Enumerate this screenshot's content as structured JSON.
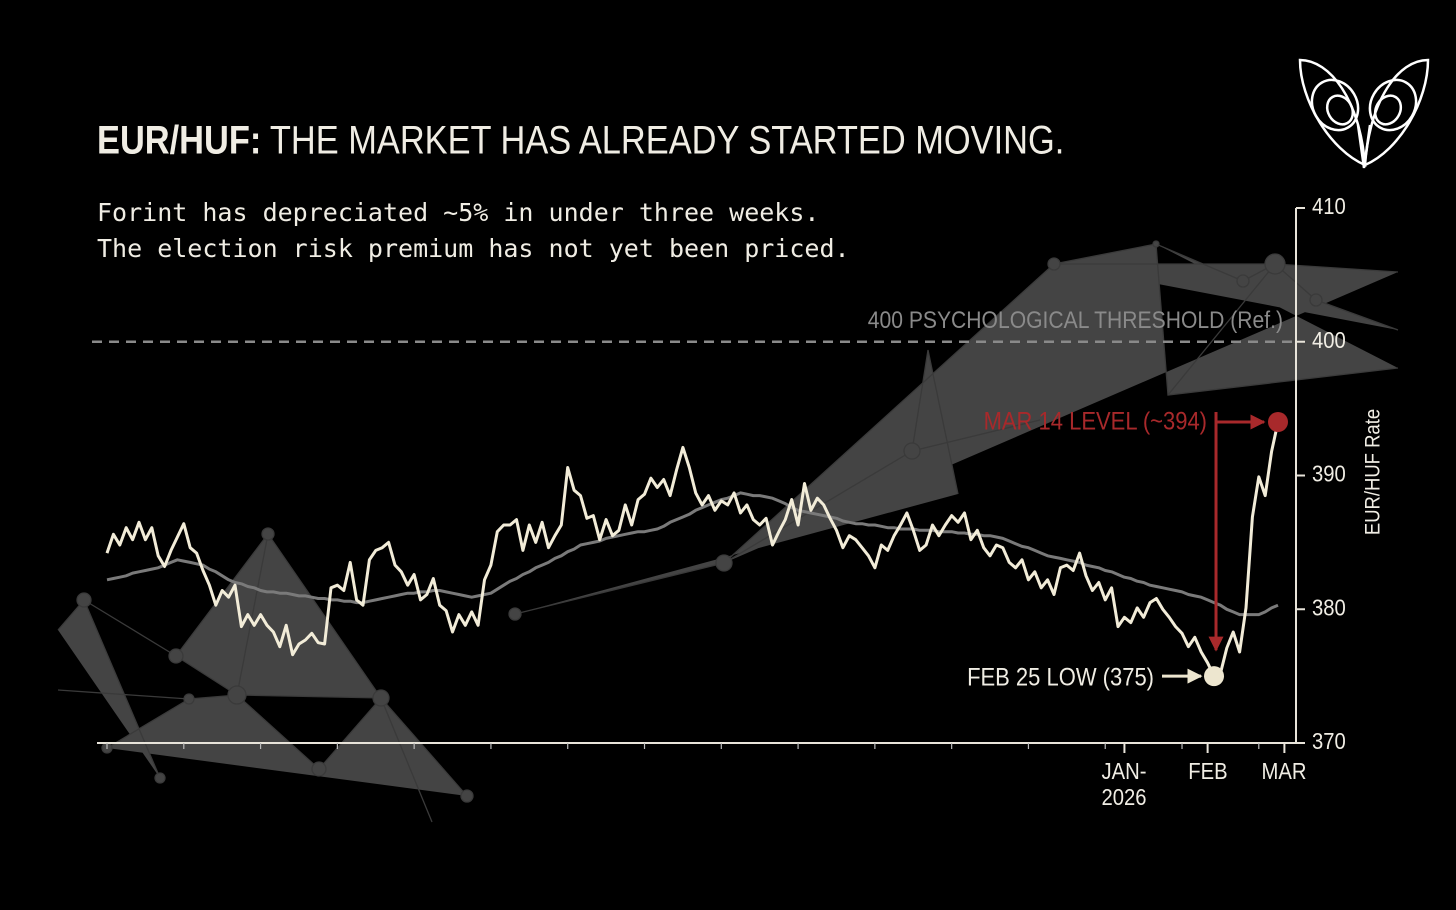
{
  "chart_data": {
    "type": "line",
    "title_lead": "EUR/HUF:",
    "title": "THE MARKET HAS ALREADY STARTED MOVING.",
    "subtitle": [
      "Forint has depreciated ~5% in under three weeks.",
      "The election risk premium has not yet been priced."
    ],
    "y_label": "EUR/HUF Rate",
    "categories": [
      null,
      null,
      null,
      null,
      null,
      null,
      null,
      null,
      null,
      null,
      null,
      null,
      null,
      null,
      null,
      null,
      null,
      null,
      null,
      null,
      null,
      null,
      null,
      null,
      null,
      null,
      null,
      null,
      null,
      null,
      null,
      null,
      null,
      null,
      null,
      null,
      null,
      null,
      null,
      null,
      null,
      null,
      null,
      null,
      null,
      null,
      null,
      null,
      null,
      null,
      null,
      null,
      null,
      null,
      null,
      null,
      null,
      null,
      null,
      null,
      null,
      null,
      null,
      null,
      null,
      null,
      null,
      null,
      null,
      null,
      null,
      null,
      null,
      null,
      null,
      null,
      null,
      null,
      null,
      null,
      null,
      null,
      null,
      null,
      null,
      null,
      null,
      null,
      null,
      null,
      null,
      null,
      null,
      null,
      null,
      null,
      null,
      null,
      null,
      null,
      null,
      null,
      null,
      null,
      null,
      null,
      null,
      null,
      null,
      null,
      null,
      null,
      null,
      null,
      null,
      null,
      null,
      null,
      null,
      null,
      null,
      null,
      null,
      null,
      null,
      null,
      null,
      null,
      null,
      null,
      null,
      null,
      null,
      null,
      null,
      null,
      null,
      null,
      null,
      null,
      null,
      null,
      null,
      null,
      null,
      null,
      null,
      null,
      null,
      null,
      null,
      null,
      null,
      null,
      null,
      null,
      null,
      null,
      null,
      "JAN-2026",
      null,
      null,
      null,
      null,
      null,
      null,
      null,
      null,
      null,
      null,
      null,
      null,
      "FEB",
      null,
      null,
      null,
      null,
      null,
      null,
      null,
      null,
      null,
      null,
      null,
      "MAR"
    ],
    "series": [
      {
        "color": "#f2ecd8",
        "values": [
          384.2,
          385.6,
          384.8,
          386.1,
          385.2,
          386.5,
          385.2,
          386.1,
          384.0,
          383.2,
          384.4,
          385.4,
          386.4,
          384.6,
          384.2,
          382.9,
          381.8,
          380.3,
          381.4,
          380.9,
          381.8,
          378.7,
          379.6,
          378.8,
          379.6,
          378.8,
          378.3,
          377.2,
          378.8,
          376.6,
          377.4,
          377.7,
          378.2,
          377.5,
          377.4,
          381.6,
          381.8,
          381.4,
          383.5,
          380.7,
          380.3,
          383.7,
          384.4,
          384.6,
          385.0,
          383.3,
          382.8,
          381.8,
          382.6,
          380.7,
          381.1,
          382.3,
          380.3,
          379.9,
          378.3,
          379.6,
          378.8,
          379.8,
          378.8,
          382.2,
          383.3,
          385.8,
          386.3,
          386.3,
          386.7,
          384.4,
          386.3,
          385.0,
          386.5,
          384.6,
          385.5,
          386.3,
          390.6,
          388.9,
          388.5,
          386.8,
          387.0,
          385.2,
          386.7,
          385.5,
          385.9,
          387.8,
          386.3,
          388.2,
          388.6,
          389.8,
          389.1,
          389.7,
          388.5,
          390.4,
          392.1,
          390.6,
          388.7,
          387.8,
          388.5,
          387.4,
          388.1,
          387.8,
          388.7,
          387.2,
          387.8,
          386.7,
          386.3,
          386.8,
          384.8,
          385.8,
          386.7,
          388.2,
          386.3,
          389.4,
          387.4,
          388.3,
          387.8,
          386.8,
          385.9,
          384.6,
          385.5,
          385.2,
          384.6,
          384.0,
          383.1,
          384.8,
          384.4,
          385.5,
          386.3,
          387.2,
          385.9,
          384.4,
          384.8,
          386.3,
          385.5,
          386.3,
          387.0,
          386.5,
          387.2,
          385.2,
          385.9,
          384.6,
          384.0,
          384.8,
          384.6,
          383.5,
          383.1,
          383.7,
          382.2,
          382.8,
          381.6,
          382.2,
          381.1,
          383.1,
          383.3,
          382.9,
          384.2,
          382.5,
          381.4,
          382.0,
          380.7,
          381.6,
          378.7,
          379.4,
          379.0,
          380.1,
          379.4,
          380.5,
          380.8,
          380.0,
          379.4,
          378.7,
          378.2,
          377.2,
          377.9,
          376.8,
          376.0,
          375,
          375.2,
          377.1,
          378.3,
          376.8,
          380.1,
          386.9,
          389.9,
          388.5,
          391.8,
          394,
          null
        ]
      },
      {
        "color": "#7a7a7a",
        "values": [
          382.2,
          382.3,
          382.4,
          382.5,
          382.7,
          382.8,
          382.9,
          383.0,
          383.1,
          383.3,
          383.5,
          383.7,
          383.6,
          383.5,
          383.4,
          383.3,
          383.0,
          382.8,
          382.5,
          382.2,
          382.0,
          381.9,
          381.7,
          381.6,
          381.4,
          381.3,
          381.3,
          381.2,
          381.2,
          381.1,
          381.0,
          381.0,
          380.9,
          380.8,
          380.8,
          380.7,
          380.7,
          380.6,
          380.6,
          380.5,
          380.5,
          380.6,
          380.7,
          380.8,
          380.9,
          381.0,
          381.1,
          381.2,
          381.2,
          381.3,
          381.3,
          381.4,
          381.4,
          381.3,
          381.2,
          381.1,
          381.0,
          380.9,
          381.0,
          381.1,
          381.2,
          381.5,
          381.8,
          382.1,
          382.3,
          382.6,
          382.8,
          383.1,
          383.3,
          383.5,
          383.8,
          384.0,
          384.3,
          384.5,
          384.8,
          384.9,
          385.0,
          385.1,
          385.3,
          385.4,
          385.5,
          385.6,
          385.7,
          385.8,
          385.8,
          385.9,
          386.0,
          386.2,
          386.5,
          386.7,
          386.9,
          387.1,
          387.4,
          387.6,
          387.8,
          388.0,
          388.2,
          388.3,
          388.5,
          388.7,
          388.6,
          388.5,
          388.5,
          388.4,
          388.3,
          388.1,
          387.9,
          387.6,
          387.4,
          387.3,
          387.2,
          387.1,
          387.0,
          386.9,
          386.8,
          386.6,
          386.5,
          386.4,
          386.4,
          386.3,
          386.3,
          386.2,
          386.1,
          386.1,
          386.0,
          386.0,
          386.0,
          385.9,
          385.9,
          385.9,
          385.8,
          385.8,
          385.8,
          385.7,
          385.7,
          385.6,
          385.6,
          385.5,
          385.5,
          385.4,
          385.3,
          385.1,
          384.9,
          384.7,
          384.6,
          384.4,
          384.2,
          384.0,
          383.9,
          383.8,
          383.7,
          383.6,
          383.5,
          383.3,
          383.2,
          383.1,
          382.9,
          382.8,
          382.6,
          382.4,
          382.3,
          382.1,
          382.0,
          381.8,
          381.7,
          381.6,
          381.5,
          381.4,
          381.3,
          381.1,
          381.0,
          380.9,
          380.7,
          380.5,
          380.3,
          380.0,
          379.8,
          379.6,
          379.6,
          379.6,
          379.6,
          379.8,
          380.1,
          380.3,
          null
        ]
      }
    ],
    "ylim": [
      370,
      410
    ],
    "yticks": [
      370,
      380,
      390,
      400,
      410
    ],
    "threshold": {
      "text": "400 PSYCHOLOGICAL THRESHOLD (Ref.)",
      "value": 400,
      "color": "#8a8a8a"
    },
    "annotations": [
      {
        "text": "MAR 14 LEVEL (~394)",
        "value": 394,
        "color": "#a8292b"
      },
      {
        "text": "FEB 25 LOW (375)",
        "value": 375,
        "color": "#ede6cf"
      }
    ]
  }
}
